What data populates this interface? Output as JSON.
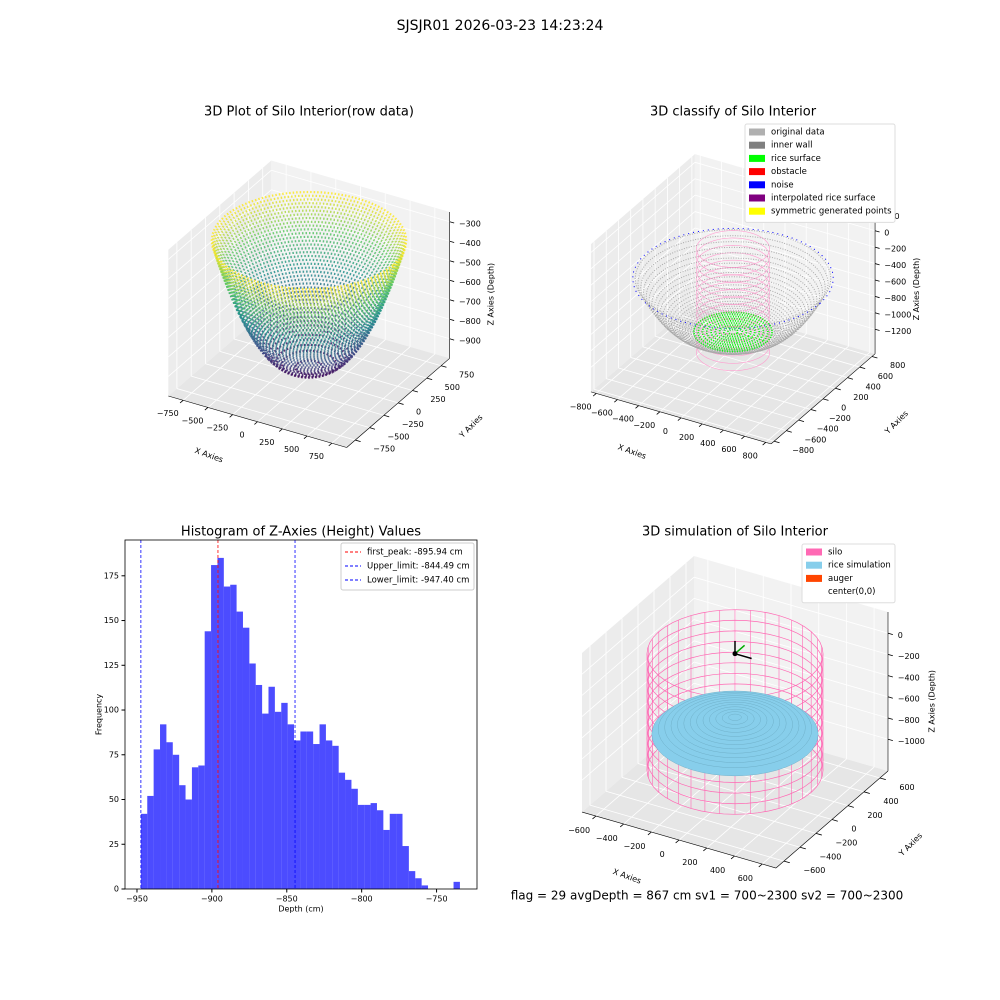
{
  "title": "SJSJR01 2026-03-23 14:23:24",
  "footer": "flag = 29  avgDepth = 867 cm  sv1 = 700~2300  sv2 = 700~2300",
  "chart_data": [
    {
      "type": "scatter3d",
      "title": "3D Plot of Silo Interior(row data)",
      "xlabel": "X Axies",
      "ylabel": "Y Axies",
      "zlabel": "Z Axies (Depth)",
      "xlim": [
        -900,
        900
      ],
      "ylim": [
        -900,
        900
      ],
      "zlim": [
        -1000,
        -250
      ],
      "xticks": [
        {
          "value": -750,
          "label": "−750"
        },
        {
          "value": -500,
          "label": "−500"
        },
        {
          "value": -250,
          "label": "−250"
        },
        0,
        250,
        500,
        750
      ],
      "yticks": [
        {
          "value": -750,
          "label": "−750"
        },
        {
          "value": -500,
          "label": "−500"
        },
        {
          "value": -250,
          "label": "−250"
        },
        0,
        250,
        500,
        750
      ],
      "zticks": [
        {
          "value": -900,
          "label": "−900"
        },
        {
          "value": -800,
          "label": "−800"
        },
        {
          "value": -700,
          "label": "−700"
        },
        {
          "value": -600,
          "label": "−600"
        },
        {
          "value": -500,
          "label": "−500"
        },
        {
          "value": -400,
          "label": "−400"
        },
        {
          "value": -300,
          "label": "−300"
        }
      ]
    },
    {
      "type": "scatter3d",
      "title": "3D classify of Silo Interior",
      "xlabel": "X Axies",
      "ylabel": "Y Axies",
      "zlabel": "Z Axies (Depth)",
      "xlim": [
        -850,
        850
      ],
      "ylim": [
        -850,
        850
      ],
      "zlim": [
        -1500,
        300
      ],
      "xticks": [
        {
          "value": -800,
          "label": "−800"
        },
        {
          "value": -600,
          "label": "−600"
        },
        {
          "value": -400,
          "label": "−400"
        },
        {
          "value": -200,
          "label": "−200"
        },
        0,
        200,
        400,
        600,
        800
      ],
      "yticks": [
        {
          "value": -800,
          "label": "−800"
        },
        {
          "value": -600,
          "label": "−600"
        },
        {
          "value": -400,
          "label": "−400"
        },
        {
          "value": -200,
          "label": "−200"
        },
        0,
        200,
        400,
        600,
        800
      ],
      "zticks": [
        {
          "value": -1200,
          "label": "−1200"
        },
        {
          "value": -1000,
          "label": "−1000"
        },
        {
          "value": -800,
          "label": "−800"
        },
        {
          "value": -600,
          "label": "−600"
        },
        {
          "value": -400,
          "label": "−400"
        },
        {
          "value": -200,
          "label": "−200"
        },
        0,
        200
      ],
      "legend": [
        {
          "name": "original data",
          "color": "#b0b0b0"
        },
        {
          "name": "inner wall",
          "color": "#808080"
        },
        {
          "name": "rice surface",
          "color": "#00ff00"
        },
        {
          "name": "obstacle",
          "color": "#ff0000"
        },
        {
          "name": "noise",
          "color": "#0000ff"
        },
        {
          "name": "interpolated rice surface",
          "color": "#800080"
        },
        {
          "name": "symmetric generated points",
          "color": "#ffff00"
        }
      ]
    },
    {
      "type": "histogram",
      "title": "Histogram of Z-Axies (Height) Values",
      "xlabel": "Depth (cm)",
      "ylabel": "Frequency",
      "color": "#0000ff",
      "legend_position": "upper right",
      "xlim": [
        -958,
        -723
      ],
      "ylim": [
        0,
        195
      ],
      "xticks": [
        {
          "value": -950,
          "label": "−950"
        },
        {
          "value": -900,
          "label": "−900"
        },
        {
          "value": -850,
          "label": "−850"
        },
        {
          "value": -800,
          "label": "−800"
        },
        {
          "value": -750,
          "label": "−750"
        }
      ],
      "yticks": [
        0,
        25,
        50,
        75,
        100,
        125,
        150,
        175
      ],
      "bins": [
        -947.4,
        -943.14,
        -938.88,
        -934.62,
        -930.36,
        -926.1,
        -921.84,
        -917.58,
        -913.32,
        -909.06,
        -904.8,
        -900.54,
        -896.28,
        -892.02,
        -887.76,
        -883.5,
        -879.24,
        -874.98,
        -870.72,
        -866.46,
        -862.2,
        -857.94,
        -853.68,
        -849.42,
        -845.16,
        -840.9,
        -836.64,
        -832.38,
        -828.12,
        -823.86,
        -819.6,
        -815.34,
        -811.08,
        -806.82,
        -802.56,
        -798.3,
        -794.04,
        -789.78,
        -785.52,
        -781.26,
        -777.0,
        -772.74,
        -768.48,
        -764.22,
        -759.96,
        -755.7,
        -751.44,
        -747.18,
        -742.92,
        -738.66,
        -734.4
      ],
      "counts": [
        42,
        52,
        78,
        92,
        82,
        75,
        58,
        50,
        68,
        69,
        144,
        181,
        185,
        169,
        170,
        155,
        146,
        126,
        114,
        98,
        113,
        99,
        104,
        92,
        83,
        88,
        88,
        81,
        92,
        83,
        80,
        65,
        61,
        56,
        47,
        47,
        48,
        44,
        33,
        42,
        42,
        24,
        10,
        6,
        2,
        0,
        0,
        0,
        0,
        4
      ],
      "lines": [
        {
          "label": "first_peak: -895.94 cm",
          "value": -895.94,
          "color": "#ff0000"
        },
        {
          "label": "Upper_limit: -844.49 cm",
          "value": -844.49,
          "color": "#0000ff"
        },
        {
          "label": "Lower_limit: -947.40 cm",
          "value": -947.4,
          "color": "#0000ff"
        }
      ]
    },
    {
      "type": "scatter3d",
      "title": "3D simulation of Silo Interior",
      "xlabel": "X Axies",
      "ylabel": "Y Axies",
      "zlabel": "Z Axies (Depth)",
      "xlim": [
        -700,
        700
      ],
      "ylim": [
        -700,
        700
      ],
      "zlim": [
        -1300,
        200
      ],
      "xticks": [
        {
          "value": -600,
          "label": "−600"
        },
        {
          "value": -400,
          "label": "−400"
        },
        {
          "value": -200,
          "label": "−200"
        },
        0,
        200,
        400,
        600
      ],
      "yticks": [
        {
          "value": -600,
          "label": "−600"
        },
        {
          "value": -400,
          "label": "−400"
        },
        {
          "value": -200,
          "label": "−200"
        },
        0,
        200,
        400,
        600
      ],
      "zticks": [
        {
          "value": -1000,
          "label": "−1000"
        },
        {
          "value": -800,
          "label": "−800"
        },
        {
          "value": -600,
          "label": "−600"
        },
        {
          "value": -400,
          "label": "−400"
        },
        {
          "value": -200,
          "label": "−200"
        },
        0
      ],
      "legend": [
        {
          "name": "silo",
          "color": "#ff69b4"
        },
        {
          "name": "rice simulation",
          "color": "#87ceeb"
        },
        {
          "name": "auger",
          "color": "#ff4500"
        },
        {
          "name": "center(0,0)",
          "color": "#ffffff"
        }
      ]
    }
  ]
}
